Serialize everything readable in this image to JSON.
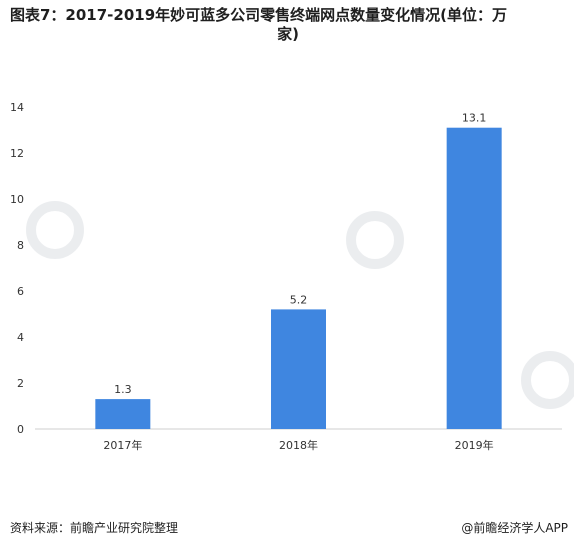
{
  "chart_data": {
    "type": "bar",
    "title": "图表7：2017-2019年妙可蓝多公司零售终端网点数量变化情况(单位：万家)",
    "title_line1": "图表7：2017-2019年妙可蓝多公司零售终端网点数量变化情况(单位：万",
    "title_line2": "家)",
    "categories": [
      "2017年",
      "2018年",
      "2019年"
    ],
    "values": [
      1.3,
      5.2,
      13.1
    ],
    "value_labels": [
      "1.3",
      "5.2",
      "13.1"
    ],
    "ylim": [
      0,
      14
    ],
    "yticks": [
      0,
      2,
      4,
      6,
      8,
      10,
      12,
      14
    ],
    "ytick_labels": [
      "0",
      "2",
      "4",
      "6",
      "8",
      "10",
      "12",
      "14"
    ],
    "xlabel": "",
    "ylabel": "",
    "grid": false,
    "legend": "none",
    "bar_color": "#3f86e0"
  },
  "footer": {
    "source": "资料来源：前瞻产业研究院整理",
    "brand": "@前瞻经济学人APP"
  }
}
